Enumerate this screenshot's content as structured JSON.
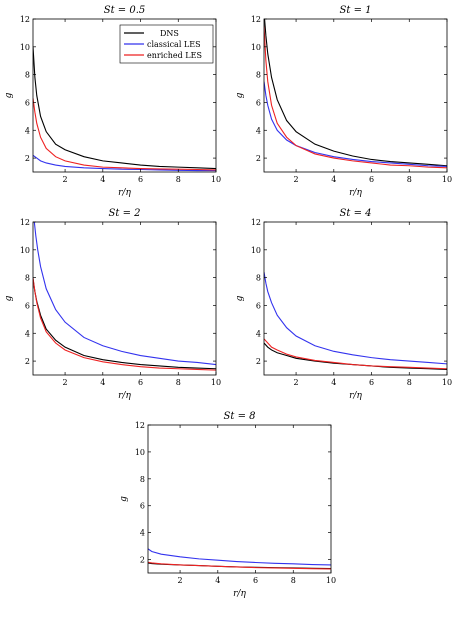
{
  "chart_data": [
    {
      "type": "line",
      "title": "St = 0.5",
      "xlabel": "r/η",
      "ylabel": "g",
      "xlim": [
        0.3,
        10
      ],
      "ylim": [
        1,
        12
      ],
      "xticks": [
        "2",
        "4",
        "6",
        "8",
        "10"
      ],
      "yticks": [
        "2",
        "4",
        "6",
        "8",
        "10",
        "12"
      ],
      "legend": {
        "placement": "top-right",
        "entries": [
          "DNS",
          "classical LES",
          "enriched LES"
        ]
      },
      "series": [
        {
          "name": "DNS",
          "color": "#000000",
          "x": [
            0.3,
            0.4,
            0.5,
            0.7,
            1.0,
            1.5,
            2,
            3,
            4,
            5,
            6,
            7,
            8,
            9,
            10
          ],
          "y": [
            10.0,
            7.8,
            6.5,
            5.0,
            3.9,
            3.0,
            2.6,
            2.1,
            1.8,
            1.65,
            1.5,
            1.4,
            1.35,
            1.3,
            1.25
          ]
        },
        {
          "name": "classical LES",
          "color": "#3333ee",
          "x": [
            0.3,
            0.5,
            0.7,
            1.0,
            1.5,
            2,
            3,
            4,
            5,
            6,
            7,
            8,
            9,
            10
          ],
          "y": [
            2.2,
            2.0,
            1.8,
            1.65,
            1.5,
            1.4,
            1.3,
            1.25,
            1.2,
            1.18,
            1.15,
            1.12,
            1.1,
            1.1
          ]
        },
        {
          "name": "enriched LES",
          "color": "#ee2222",
          "x": [
            0.3,
            0.4,
            0.5,
            0.7,
            1.0,
            1.5,
            2,
            3,
            4,
            5,
            6,
            7,
            8,
            9,
            10
          ],
          "y": [
            6.3,
            5.3,
            4.5,
            3.5,
            2.7,
            2.1,
            1.8,
            1.5,
            1.35,
            1.3,
            1.25,
            1.22,
            1.2,
            1.18,
            1.15
          ]
        }
      ]
    },
    {
      "type": "line",
      "title": "St = 1",
      "xlabel": "r/η",
      "ylabel": "g",
      "xlim": [
        0.3,
        10
      ],
      "ylim": [
        1,
        12
      ],
      "xticks": [
        "2",
        "4",
        "6",
        "8",
        "10"
      ],
      "yticks": [
        "2",
        "4",
        "6",
        "8",
        "10",
        "12"
      ],
      "series": [
        {
          "name": "DNS",
          "color": "#000000",
          "x": [
            0.33,
            0.4,
            0.5,
            0.7,
            1.0,
            1.5,
            2,
            3,
            4,
            5,
            6,
            7,
            8,
            9,
            10
          ],
          "y": [
            12.0,
            10.8,
            9.5,
            7.8,
            6.2,
            4.7,
            3.9,
            3.0,
            2.5,
            2.15,
            1.9,
            1.75,
            1.65,
            1.55,
            1.45
          ]
        },
        {
          "name": "classical LES",
          "color": "#3333ee",
          "x": [
            0.3,
            0.4,
            0.5,
            0.7,
            1.0,
            1.5,
            2,
            3,
            4,
            5,
            6,
            7,
            8,
            9,
            10
          ],
          "y": [
            7.5,
            6.5,
            5.8,
            4.8,
            4.0,
            3.3,
            2.9,
            2.4,
            2.1,
            1.9,
            1.75,
            1.65,
            1.55,
            1.45,
            1.4
          ]
        },
        {
          "name": "enriched LES",
          "color": "#ee2222",
          "x": [
            0.3,
            0.4,
            0.5,
            0.7,
            1.0,
            1.5,
            2,
            3,
            4,
            5,
            6,
            7,
            8,
            9,
            10
          ],
          "y": [
            11.5,
            9.0,
            7.5,
            5.8,
            4.5,
            3.5,
            2.9,
            2.3,
            2.0,
            1.8,
            1.65,
            1.5,
            1.45,
            1.35,
            1.3
          ]
        }
      ]
    },
    {
      "type": "line",
      "title": "St = 2",
      "xlabel": "r/η",
      "ylabel": "g",
      "xlim": [
        0.3,
        10
      ],
      "ylim": [
        1,
        12
      ],
      "xticks": [
        "2",
        "4",
        "6",
        "8",
        "10"
      ],
      "yticks": [
        "2",
        "4",
        "6",
        "8",
        "10",
        "12"
      ],
      "series": [
        {
          "name": "DNS",
          "color": "#000000",
          "x": [
            0.3,
            0.4,
            0.5,
            0.7,
            1.0,
            1.5,
            2,
            3,
            4,
            5,
            6,
            7,
            8,
            9,
            10
          ],
          "y": [
            7.9,
            7.0,
            6.3,
            5.3,
            4.3,
            3.5,
            3.0,
            2.4,
            2.1,
            1.9,
            1.75,
            1.65,
            1.55,
            1.5,
            1.45
          ]
        },
        {
          "name": "classical LES",
          "color": "#3333ee",
          "x": [
            0.37,
            0.45,
            0.55,
            0.7,
            1.0,
            1.5,
            2,
            3,
            4,
            5,
            6,
            7,
            8,
            9,
            10
          ],
          "y": [
            12.0,
            11.0,
            10.0,
            8.8,
            7.2,
            5.7,
            4.8,
            3.7,
            3.1,
            2.7,
            2.4,
            2.2,
            2.0,
            1.9,
            1.75
          ]
        },
        {
          "name": "enriched LES",
          "color": "#ee2222",
          "x": [
            0.3,
            0.4,
            0.5,
            0.7,
            1.0,
            1.5,
            2,
            3,
            4,
            5,
            6,
            7,
            8,
            9,
            10
          ],
          "y": [
            8.0,
            7.0,
            6.2,
            5.1,
            4.1,
            3.3,
            2.8,
            2.25,
            1.95,
            1.75,
            1.6,
            1.5,
            1.45,
            1.4,
            1.35
          ]
        }
      ]
    },
    {
      "type": "line",
      "title": "St = 4",
      "xlabel": "r/η",
      "ylabel": "g",
      "xlim": [
        0.3,
        10
      ],
      "ylim": [
        1,
        12
      ],
      "xticks": [
        "2",
        "4",
        "6",
        "8",
        "10"
      ],
      "yticks": [
        "2",
        "4",
        "6",
        "8",
        "10",
        "12"
      ],
      "series": [
        {
          "name": "DNS",
          "color": "#000000",
          "x": [
            0.3,
            0.5,
            0.7,
            1.0,
            1.5,
            2,
            3,
            4,
            5,
            6,
            7,
            8,
            9,
            10
          ],
          "y": [
            3.3,
            3.0,
            2.8,
            2.6,
            2.4,
            2.2,
            2.0,
            1.85,
            1.75,
            1.65,
            1.55,
            1.5,
            1.45,
            1.4
          ]
        },
        {
          "name": "classical LES",
          "color": "#3333ee",
          "x": [
            0.3,
            0.4,
            0.5,
            0.7,
            1.0,
            1.5,
            2,
            3,
            4,
            5,
            6,
            7,
            8,
            9,
            10
          ],
          "y": [
            8.4,
            7.6,
            7.0,
            6.2,
            5.3,
            4.4,
            3.8,
            3.1,
            2.7,
            2.45,
            2.25,
            2.1,
            2.0,
            1.9,
            1.8
          ]
        },
        {
          "name": "enriched LES",
          "color": "#ee2222",
          "x": [
            0.3,
            0.5,
            0.7,
            1.0,
            1.5,
            2,
            3,
            4,
            5,
            6,
            7,
            8,
            9,
            10
          ],
          "y": [
            3.6,
            3.3,
            3.0,
            2.8,
            2.5,
            2.3,
            2.05,
            1.9,
            1.75,
            1.65,
            1.6,
            1.55,
            1.5,
            1.45
          ]
        }
      ]
    },
    {
      "type": "line",
      "title": "St = 8",
      "xlabel": "r/η",
      "ylabel": "g",
      "xlim": [
        0.3,
        10
      ],
      "ylim": [
        1,
        12
      ],
      "xticks": [
        "2",
        "4",
        "6",
        "8",
        "10"
      ],
      "yticks": [
        "2",
        "4",
        "6",
        "8",
        "10",
        "12"
      ],
      "series": [
        {
          "name": "DNS",
          "color": "#000000",
          "x": [
            0.3,
            0.5,
            1.0,
            2,
            3,
            4,
            5,
            6,
            7,
            8,
            9,
            10
          ],
          "y": [
            1.75,
            1.7,
            1.65,
            1.6,
            1.55,
            1.5,
            1.45,
            1.42,
            1.4,
            1.38,
            1.35,
            1.33
          ]
        },
        {
          "name": "classical LES",
          "color": "#3333ee",
          "x": [
            0.3,
            0.5,
            1.0,
            2,
            3,
            4,
            5,
            6,
            7,
            8,
            9,
            10
          ],
          "y": [
            2.8,
            2.6,
            2.4,
            2.2,
            2.05,
            1.95,
            1.85,
            1.78,
            1.72,
            1.68,
            1.63,
            1.6
          ]
        },
        {
          "name": "enriched LES",
          "color": "#ee2222",
          "x": [
            0.3,
            0.5,
            1.0,
            2,
            3,
            4,
            5,
            6,
            7,
            8,
            9,
            10
          ],
          "y": [
            1.8,
            1.75,
            1.68,
            1.6,
            1.55,
            1.5,
            1.45,
            1.4,
            1.38,
            1.35,
            1.32,
            1.3
          ]
        }
      ]
    }
  ]
}
